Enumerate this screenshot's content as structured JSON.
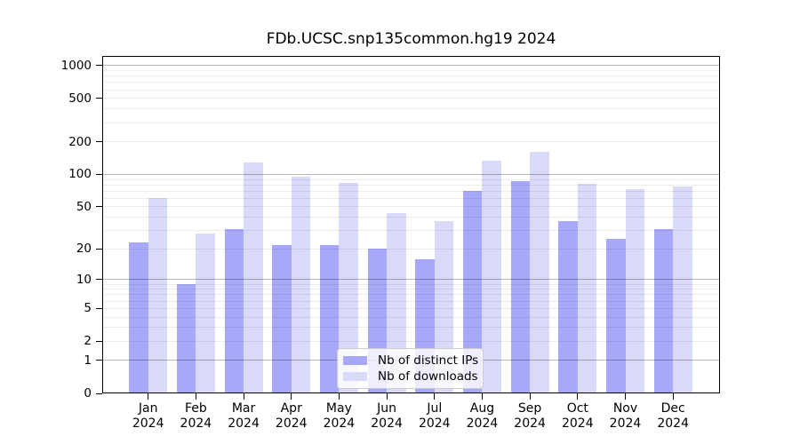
{
  "chart_data": {
    "type": "bar",
    "title": "FDb.UCSC.snp135common.hg19 2024",
    "categories": [
      "Jan 2024",
      "Feb 2024",
      "Mar 2024",
      "Apr 2024",
      "May 2024",
      "Jun 2024",
      "Jul 2024",
      "Aug 2024",
      "Sep 2024",
      "Oct 2024",
      "Nov 2024",
      "Dec 2024"
    ],
    "series": [
      {
        "name": "Nb of distinct IPs",
        "color": "#a8a8f8",
        "values": [
          23,
          9,
          31,
          22,
          22,
          20,
          16,
          70,
          87,
          37,
          25,
          31
        ]
      },
      {
        "name": "Nb of downloads",
        "color": "#d9d9f8",
        "values": [
          61,
          28,
          128,
          95,
          84,
          44,
          37,
          135,
          162,
          82,
          73,
          77
        ]
      }
    ],
    "yscale": "log1p",
    "ylim": [
      0,
      1000
    ],
    "yticks": [
      0,
      1,
      2,
      5,
      10,
      20,
      50,
      100,
      200,
      500,
      1000
    ],
    "major_gridlines": [
      1,
      10,
      100,
      1000
    ],
    "grid": true,
    "legend_position": "bottom-center",
    "colors": {
      "axis": "#000000",
      "major_grid": "rgba(0,0,0,0.28)",
      "minor_grid": "rgba(0,0,0,0.07)",
      "legend_border": "#cccccc"
    }
  }
}
